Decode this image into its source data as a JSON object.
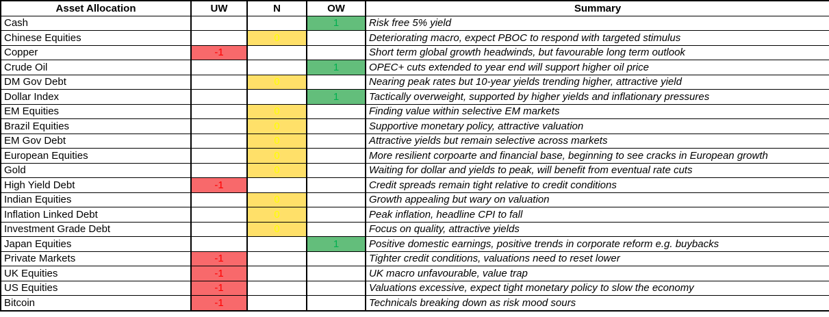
{
  "table": {
    "columns": [
      {
        "label": "Asset Allocation"
      },
      {
        "label": "UW"
      },
      {
        "label": "N"
      },
      {
        "label": "OW"
      },
      {
        "label": "Summary"
      }
    ],
    "rows": [
      {
        "asset": "Cash",
        "stance": "ow",
        "value": "1",
        "summary": "Risk free 5% yield"
      },
      {
        "asset": "Chinese Equities",
        "stance": "n",
        "value": "0",
        "summary": "Deteriorating macro, expect PBOC to respond with targeted stimulus"
      },
      {
        "asset": "Copper",
        "stance": "uw",
        "value": "-1",
        "summary": "Short term global growth headwinds, but favourable long term outlook"
      },
      {
        "asset": "Crude Oil",
        "stance": "ow",
        "value": "1",
        "summary": "OPEC+ cuts extended to year end will support higher oil price"
      },
      {
        "asset": "DM Gov Debt",
        "stance": "n",
        "value": "0",
        "summary": "Nearing peak rates but 10-year yields trending higher, attractive yield"
      },
      {
        "asset": "Dollar Index",
        "stance": "ow",
        "value": "1",
        "summary": "Tactically overweight, supported by higher yields and inflationary pressures"
      },
      {
        "asset": "EM Equities",
        "stance": "n",
        "value": "0",
        "summary": "Finding value within selective EM markets"
      },
      {
        "asset": "Brazil Equities",
        "stance": "n",
        "value": "0",
        "summary": "Supportive monetary policy, attractive valuation"
      },
      {
        "asset": "EM Gov Debt",
        "stance": "n",
        "value": "0",
        "summary": "Attractive yields but remain selective across markets"
      },
      {
        "asset": "European Equities",
        "stance": "n",
        "value": "0",
        "summary": "More resilient corpoarte and financial base, beginning to see cracks in European growth"
      },
      {
        "asset": "Gold",
        "stance": "n",
        "value": "0",
        "summary": "Waiting for dollar and yields to peak, will benefit from eventual rate cuts"
      },
      {
        "asset": "High Yield Debt",
        "stance": "uw",
        "value": "-1",
        "summary": "Credit spreads remain tight relative to credit conditions"
      },
      {
        "asset": "Indian Equities",
        "stance": "n",
        "value": "0",
        "summary": "Growth appealing but wary on valuation"
      },
      {
        "asset": "Inflation Linked Debt",
        "stance": "n",
        "value": "0",
        "summary": "Peak inflation, headline CPI to fall"
      },
      {
        "asset": "Investment Grade Debt",
        "stance": "n",
        "value": "0",
        "summary": "Focus on quality, attractive yields"
      },
      {
        "asset": "Japan Equities",
        "stance": "ow",
        "value": "1",
        "summary": "Positive domestic earnings, positive trends in corporate reform e.g. buybacks"
      },
      {
        "asset": "Private Markets",
        "stance": "uw",
        "value": "-1",
        "summary": "Tighter credit conditions, valuations need to reset lower"
      },
      {
        "asset": "UK Equities",
        "stance": "uw",
        "value": "-1",
        "summary": "UK macro unfavourable, value trap"
      },
      {
        "asset": "US Equities",
        "stance": "uw",
        "value": "-1",
        "summary": "Valuations excessive, expect tight monetary policy to slow the economy"
      },
      {
        "asset": "Bitcoin",
        "stance": "uw",
        "value": "-1",
        "summary": "Technicals breaking down as risk mood sours"
      }
    ]
  },
  "colors": {
    "uw_bg": "#F8696B",
    "uw_value_text": "#FF0000",
    "n_bg": "#FFE069",
    "n_value_text": "#FFFF00",
    "ow_bg": "#63BE7B",
    "ow_value_text": "#00B050",
    "grid_border": "#000000"
  }
}
